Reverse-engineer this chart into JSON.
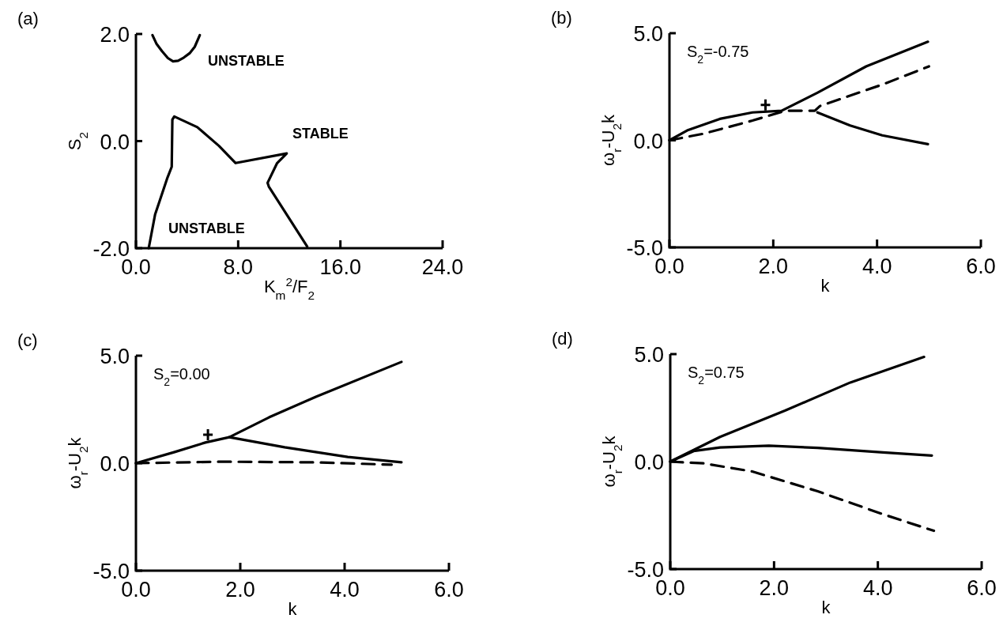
{
  "chart_data": [
    {
      "type": "line",
      "title": "(a)",
      "xlabel": "K$_{m}$$^{2}$/F$_{2}$",
      "ylabel": "S$_{2}$",
      "xlim": [
        0,
        24
      ],
      "ylim": [
        -2,
        2
      ],
      "xticks": [
        {
          "value": 0,
          "label": "0.0"
        },
        {
          "value": 8,
          "label": "8.0"
        },
        {
          "value": 16,
          "label": "16.0"
        },
        {
          "value": 24,
          "label": "24.0"
        }
      ],
      "yticks": [
        {
          "value": -2,
          "label": "-2.0"
        },
        {
          "value": 0,
          "label": "0.0"
        },
        {
          "value": 2,
          "label": "2.0"
        }
      ],
      "annotations": [
        "UNSTABLE",
        "STABLE",
        "UNSTABLE"
      ],
      "series": [
        {
          "color": "#000000",
          "x": [
            1.0,
            1.5,
            2.47,
            2.8,
            2.85,
            3.0,
            4.8,
            6.5,
            7.8,
            11.8,
            11.05,
            10.3,
            10.4,
            13.4
          ],
          "values": [
            -2.0,
            -1.37,
            -0.68,
            -0.48,
            0.4,
            0.46,
            0.26,
            -0.09,
            -0.41,
            -0.23,
            -0.41,
            -0.78,
            -0.85,
            -1.97
          ]
        },
        {
          "color": "#000000",
          "x": [
            1.29,
            1.6,
            2.04,
            2.5,
            2.9,
            3.3,
            3.75,
            4.2,
            4.6,
            5.0
          ],
          "values": [
            1.98,
            1.82,
            1.68,
            1.55,
            1.49,
            1.5,
            1.56,
            1.64,
            1.76,
            1.98
          ]
        }
      ]
    },
    {
      "type": "line",
      "title": "(b)",
      "xlabel": "k",
      "ylabel": "ω$_{r}$-U$_{2}$k",
      "xlim": [
        0,
        6
      ],
      "ylim": [
        -5,
        5
      ],
      "xticks": [
        {
          "value": 0,
          "label": "0.0"
        },
        {
          "value": 2,
          "label": "2.0"
        },
        {
          "value": 4,
          "label": "4.0"
        },
        {
          "value": 6,
          "label": "6.0"
        }
      ],
      "yticks": [
        {
          "value": -5,
          "label": "-5.0"
        },
        {
          "value": 0,
          "label": "0.0"
        },
        {
          "value": 5,
          "label": "5.0"
        }
      ],
      "annotations": [
        "S$_{2}$=-0.75"
      ],
      "series": [
        {
          "color": "#000000",
          "x": [
            0,
            0.34,
            0.97,
            1.6,
            2.16,
            2.85,
            3.79,
            4.98
          ],
          "values": [
            0,
            0.46,
            1.0,
            1.3,
            1.38,
            2.22,
            3.45,
            4.6
          ]
        },
        {
          "color": "#000000",
          "x": [
            2.85,
            3.48,
            4.1,
            4.98
          ],
          "values": [
            1.3,
            0.69,
            0.23,
            -0.18
          ]
        },
        {
          "color": "#000000",
          "line_style": "dashed",
          "x": [
            0,
            0.66,
            1.6,
            2.23,
            2.8,
            2.9,
            4.1,
            5.0
          ],
          "values": [
            0,
            0.31,
            0.92,
            1.38,
            1.38,
            1.6,
            2.6,
            3.45
          ]
        },
        {
          "type": "scatter",
          "marker": "cross",
          "color": "#000000",
          "x": [
            1.85
          ],
          "values": [
            1.65
          ]
        }
      ]
    },
    {
      "type": "line",
      "title": "(c)",
      "xlabel": "k",
      "ylabel": "ω$_{r}$-U$_{2}$k",
      "xlim": [
        0,
        6
      ],
      "ylim": [
        -5,
        5
      ],
      "xticks": [
        {
          "value": 0,
          "label": "0.0"
        },
        {
          "value": 2,
          "label": "2.0"
        },
        {
          "value": 4,
          "label": "4.0"
        },
        {
          "value": 6,
          "label": "6.0"
        }
      ],
      "yticks": [
        {
          "value": -5,
          "label": "-5.0"
        },
        {
          "value": 0,
          "label": "0.0"
        },
        {
          "value": 5,
          "label": "5.0"
        }
      ],
      "annotations": [
        "S$_{2}$=0.00"
      ],
      "series": [
        {
          "color": "#000000",
          "x": [
            0,
            0.73,
            1.33,
            1.79,
            2.55,
            3.45,
            5.09
          ],
          "values": [
            0,
            0.51,
            0.96,
            1.21,
            2.13,
            3.09,
            4.71
          ]
        },
        {
          "color": "#000000",
          "x": [
            1.79,
            2.85,
            4.06,
            5.09
          ],
          "values": [
            1.21,
            0.74,
            0.29,
            0.04
          ]
        },
        {
          "color": "#000000",
          "line_style": "dashed",
          "x": [
            0,
            1.64,
            3.45,
            4.9
          ],
          "values": [
            0,
            0.07,
            0.04,
            -0.07
          ]
        },
        {
          "type": "scatter",
          "marker": "cross",
          "color": "#000000",
          "x": [
            1.38
          ],
          "values": [
            1.32
          ]
        }
      ]
    },
    {
      "type": "line",
      "title": "(d)",
      "xlabel": "k",
      "ylabel": "ω$_{r}$-U$_{2}$k",
      "xlim": [
        0,
        6
      ],
      "ylim": [
        -5,
        5
      ],
      "xticks": [
        {
          "value": 0,
          "label": "0.0"
        },
        {
          "value": 2,
          "label": "2.0"
        },
        {
          "value": 4,
          "label": "4.0"
        },
        {
          "value": 6,
          "label": "6.0"
        }
      ],
      "yticks": [
        {
          "value": -5,
          "label": "-5.0"
        },
        {
          "value": 0,
          "label": "0.0"
        },
        {
          "value": 5,
          "label": "5.0"
        }
      ],
      "annotations": [
        "S$_{2}$=0.75"
      ],
      "series": [
        {
          "color": "#000000",
          "x": [
            0,
            0.96,
            2.21,
            3.47,
            4.89
          ],
          "values": [
            0,
            1.15,
            2.37,
            3.68,
            4.87
          ]
        },
        {
          "color": "#000000",
          "x": [
            0,
            0.45,
            0.96,
            1.9,
            2.84,
            4.1,
            5.04
          ],
          "values": [
            0,
            0.49,
            0.66,
            0.74,
            0.64,
            0.43,
            0.28
          ]
        },
        {
          "color": "#000000",
          "line_style": "dashed",
          "x": [
            0,
            0.64,
            1.58,
            2.84,
            4.1,
            5.08
          ],
          "values": [
            0,
            -0.08,
            -0.46,
            -1.38,
            -2.45,
            -3.22
          ]
        }
      ]
    }
  ]
}
